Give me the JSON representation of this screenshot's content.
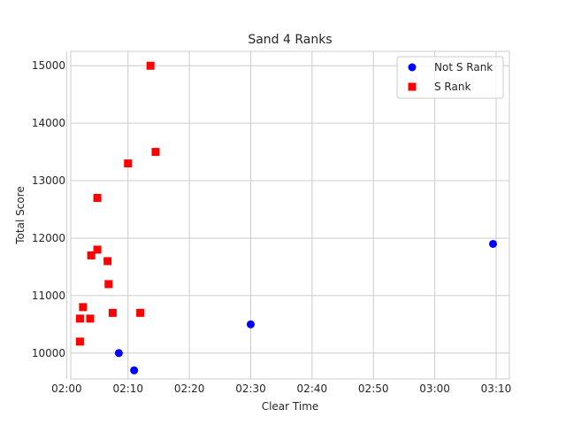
{
  "chart_data": {
    "type": "scatter",
    "title": "Sand 4 Ranks",
    "xlabel": "Clear Time",
    "ylabel": "Total Score",
    "xlim": [
      "02:00:40",
      "03:12:10"
    ],
    "ylim": [
      9550,
      15250
    ],
    "xticks": [
      "02:00",
      "02:10",
      "02:20",
      "02:30",
      "02:40",
      "02:50",
      "03:00",
      "03:10"
    ],
    "yticks": [
      10000,
      11000,
      12000,
      13000,
      14000,
      15000
    ],
    "grid": true,
    "legend_position": "top-right",
    "series": [
      {
        "name": "Not S Rank",
        "marker": "circle",
        "color": "#0000ff",
        "points": [
          {
            "x": "02:08:30",
            "y": 10000
          },
          {
            "x": "02:11:00",
            "y": 9700
          },
          {
            "x": "02:30:00",
            "y": 10500
          },
          {
            "x": "03:09:30",
            "y": 11900
          }
        ]
      },
      {
        "name": "S Rank",
        "marker": "square",
        "color": "#ff0000",
        "points": [
          {
            "x": "02:02:10",
            "y": 10200
          },
          {
            "x": "02:02:10",
            "y": 10600
          },
          {
            "x": "02:02:40",
            "y": 10800
          },
          {
            "x": "02:03:50",
            "y": 10600
          },
          {
            "x": "02:04:00",
            "y": 11700
          },
          {
            "x": "02:05:00",
            "y": 11800
          },
          {
            "x": "02:05:00",
            "y": 12700
          },
          {
            "x": "02:06:40",
            "y": 11600
          },
          {
            "x": "02:06:50",
            "y": 11200
          },
          {
            "x": "02:07:30",
            "y": 10700
          },
          {
            "x": "02:10:00",
            "y": 13300
          },
          {
            "x": "02:12:00",
            "y": 10700
          },
          {
            "x": "02:13:40",
            "y": 15000
          },
          {
            "x": "02:14:30",
            "y": 13500
          }
        ]
      }
    ]
  }
}
